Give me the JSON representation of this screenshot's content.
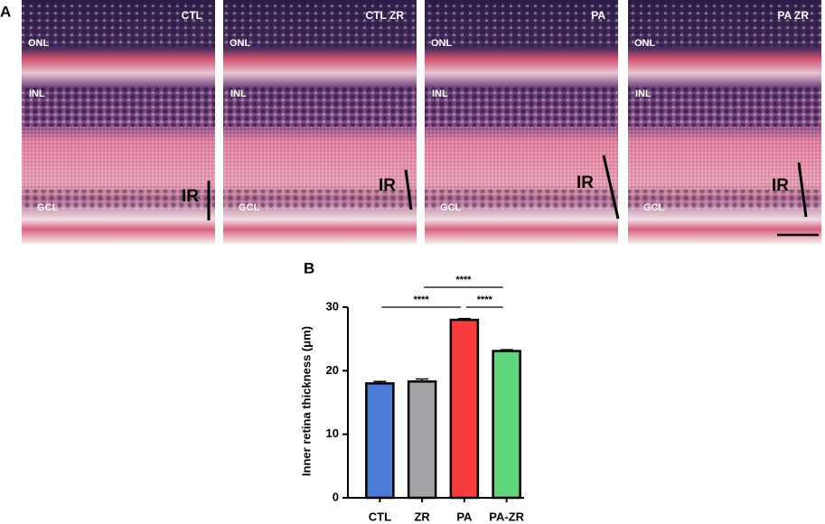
{
  "figure": {
    "panel_a_letter": "A",
    "panel_b_letter": "B",
    "images": [
      {
        "title": "CTL",
        "onl": "ONL",
        "inl": "INL",
        "gcl": "GCL",
        "ir": "IR"
      },
      {
        "title": "CTL ZR",
        "onl": "ONL",
        "inl": "INL",
        "gcl": "GCL",
        "ir": "IR"
      },
      {
        "title": "PA",
        "onl": "ONL",
        "inl": "INL",
        "gcl": "GCL",
        "ir": "IR"
      },
      {
        "title": "PA ZR",
        "onl": "ONL",
        "inl": "INL",
        "gcl": "GCL",
        "ir": "IR"
      }
    ]
  },
  "chart_data": {
    "type": "bar",
    "y_label": "Inner retina thickness (μm)",
    "categories": [
      "CTL",
      "ZR",
      "PA",
      "PA-ZR"
    ],
    "values": [
      18.0,
      18.3,
      28.0,
      23.1
    ],
    "errors": [
      0.3,
      0.4,
      0.2,
      0.2
    ],
    "colors": [
      "#4a7bd8",
      "#a3a3a8",
      "#f63c3c",
      "#62d67c"
    ],
    "ylim": [
      0,
      30
    ],
    "yticks": [
      0,
      10,
      20,
      30
    ],
    "significance": [
      {
        "pair": [
          "CTL",
          "PA"
        ],
        "label": "****"
      },
      {
        "pair": [
          "ZR",
          "PA-ZR"
        ],
        "label": "****"
      },
      {
        "pair": [
          "PA",
          "PA-ZR"
        ],
        "label": "****"
      }
    ]
  }
}
